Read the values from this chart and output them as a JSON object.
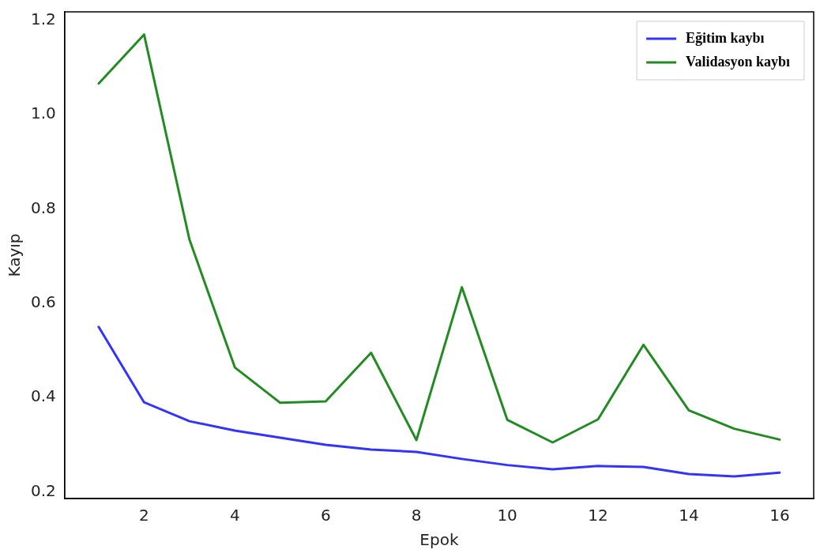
{
  "chart_data": {
    "type": "line",
    "xlabel": "Epok",
    "ylabel": "Kayıp",
    "x": [
      1,
      2,
      3,
      4,
      5,
      6,
      7,
      8,
      9,
      10,
      11,
      12,
      13,
      14,
      15,
      16
    ],
    "series": [
      {
        "name": "Eğitim kaybı",
        "color": "#3333ff",
        "values": [
          0.55,
          0.39,
          0.35,
          0.33,
          0.315,
          0.3,
          0.29,
          0.285,
          0.27,
          0.257,
          0.248,
          0.255,
          0.253,
          0.238,
          0.233,
          0.241
        ]
      },
      {
        "name": "Validasyon kaybı",
        "color": "#228b22",
        "values": [
          1.066,
          1.17,
          0.735,
          0.464,
          0.389,
          0.392,
          0.495,
          0.31,
          0.634,
          0.353,
          0.305,
          0.354,
          0.512,
          0.373,
          0.334,
          0.311
        ]
      }
    ],
    "xlim": [
      0.25,
      16.75
    ],
    "xticks": [
      2,
      4,
      6,
      8,
      10,
      12,
      14,
      16
    ],
    "ylim": [
      0.186,
      1.218
    ],
    "yticks": [
      0.2,
      0.4,
      0.6,
      0.8,
      {
        "value": 1,
        "label": "1.0"
      },
      1.2
    ],
    "grid": false,
    "legend": "top right",
    "marker": "none",
    "line_style": "solid"
  }
}
